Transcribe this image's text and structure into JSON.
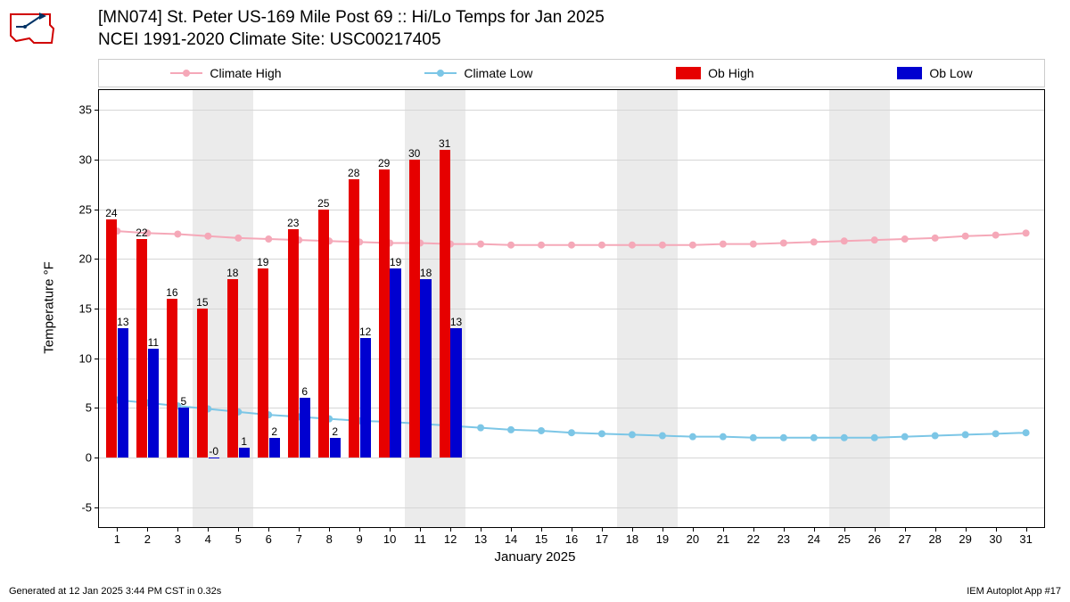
{
  "title_line1": "[MN074] St. Peter US-169 Mile Post 69 :: Hi/Lo Temps for Jan 2025",
  "title_line2": "NCEI 1991-2020 Climate Site: USC00217405",
  "ylabel": "Temperature °F",
  "xlabel": "January 2025",
  "footer_left": "Generated at 12 Jan 2025 3:44 PM CST in 0.32s",
  "footer_right": "IEM Autoplot App #17",
  "legend": {
    "climate_high": "Climate High",
    "climate_low": "Climate Low",
    "ob_high": "Ob High",
    "ob_low": "Ob Low"
  },
  "colors": {
    "climate_high": "#f5a8b8",
    "climate_low": "#7cc6e6",
    "ob_high": "#e60000",
    "ob_low": "#0000d0",
    "grid": "#d6d6d6",
    "weekend": "#ebebeb",
    "background": "#ffffff"
  },
  "chart": {
    "type": "bar+line",
    "xlim": [
      0.4,
      31.6
    ],
    "ylim": [
      -7,
      37
    ],
    "yticks": [
      -5,
      0,
      5,
      10,
      15,
      20,
      25,
      30,
      35
    ],
    "xticks": [
      1,
      2,
      3,
      4,
      5,
      6,
      7,
      8,
      9,
      10,
      11,
      12,
      13,
      14,
      15,
      16,
      17,
      18,
      19,
      20,
      21,
      22,
      23,
      24,
      25,
      26,
      27,
      28,
      29,
      30,
      31
    ],
    "weekend_bands": [
      [
        3.5,
        5.5
      ],
      [
        10.5,
        12.5
      ],
      [
        17.5,
        19.5
      ],
      [
        24.5,
        26.5
      ]
    ],
    "ob_high": {
      "days": [
        1,
        2,
        3,
        4,
        5,
        6,
        7,
        8,
        9,
        10,
        11,
        12
      ],
      "values": [
        24,
        22,
        16,
        15,
        18,
        19,
        23,
        25,
        28,
        29,
        30,
        31
      ]
    },
    "ob_low": {
      "days": [
        1,
        2,
        3,
        4,
        5,
        6,
        7,
        8,
        9,
        10,
        11,
        12
      ],
      "values": [
        13,
        11,
        5,
        0,
        1,
        2,
        6,
        2,
        12,
        19,
        18,
        13
      ],
      "labels": [
        "13",
        "11",
        "5",
        "-0",
        "1",
        "2",
        "6",
        "2",
        "12",
        "19",
        "18",
        "13"
      ]
    },
    "climate_high": [
      22.8,
      22.6,
      22.5,
      22.3,
      22.1,
      22.0,
      21.9,
      21.8,
      21.7,
      21.6,
      21.6,
      21.5,
      21.5,
      21.4,
      21.4,
      21.4,
      21.4,
      21.4,
      21.4,
      21.4,
      21.5,
      21.5,
      21.6,
      21.7,
      21.8,
      21.9,
      22.0,
      22.1,
      22.3,
      22.4,
      22.6
    ],
    "climate_low": [
      5.8,
      5.5,
      5.2,
      4.9,
      4.6,
      4.3,
      4.1,
      3.9,
      3.7,
      3.6,
      3.4,
      3.2,
      3.0,
      2.8,
      2.7,
      2.5,
      2.4,
      2.3,
      2.2,
      2.1,
      2.1,
      2.0,
      2.0,
      2.0,
      2.0,
      2.0,
      2.1,
      2.2,
      2.3,
      2.4,
      2.5
    ],
    "bar_half_width_days": 0.18,
    "line_width": 2,
    "marker_radius": 4,
    "title_fontsize": 19,
    "label_fontsize": 15,
    "tick_fontsize": 13,
    "barlabel_fontsize": 12
  }
}
